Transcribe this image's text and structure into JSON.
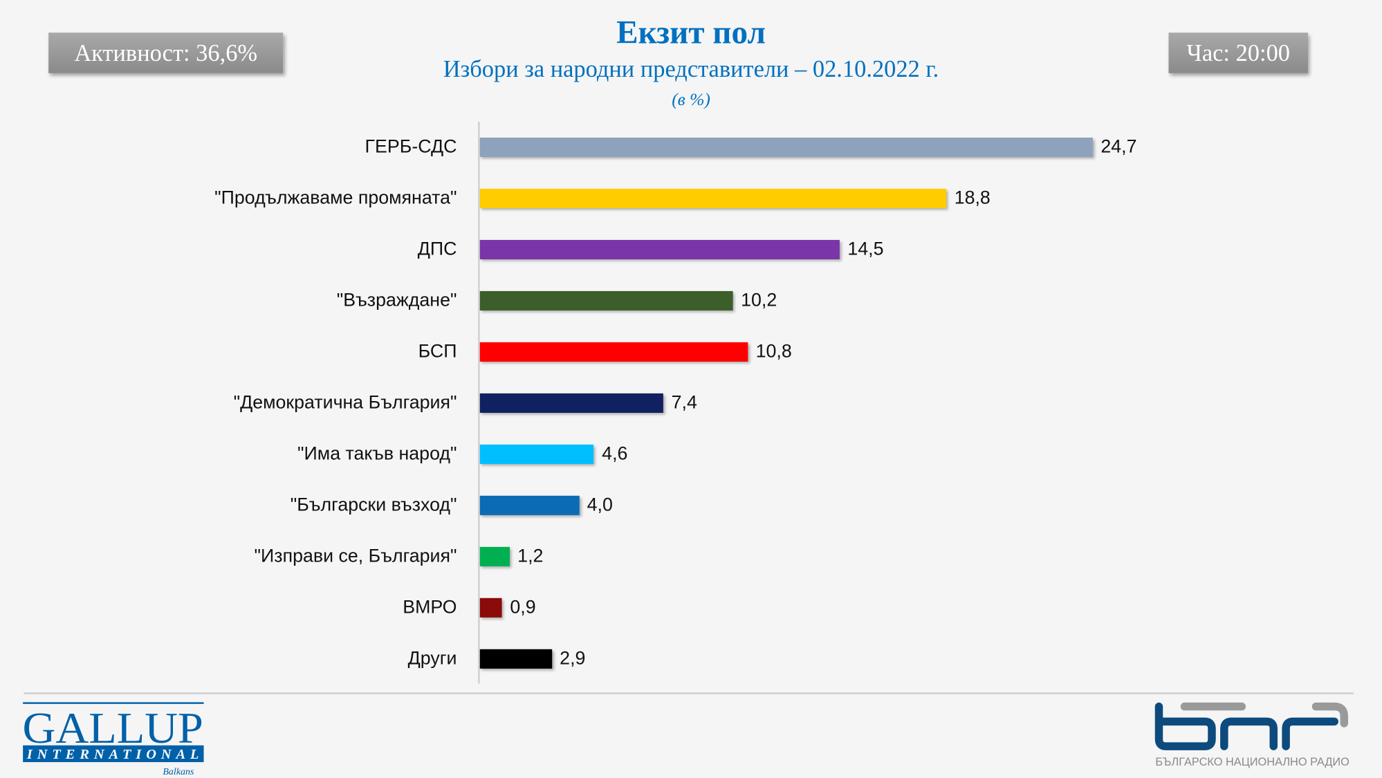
{
  "header": {
    "turnout": "Активност: 36,6%",
    "time": "Час: 20:00",
    "title": "Екзит пол",
    "subtitle": "Избори за народни представители – 02.10.2022 г.",
    "unit": "(в %)"
  },
  "chart_data": {
    "type": "bar",
    "orientation": "horizontal",
    "title": "Екзит пол",
    "subtitle": "Избори за народни представители – 02.10.2022 г.",
    "unit": "(в %)",
    "categories": [
      "ГЕРБ-СДС",
      "\"Продължаваме промяната\"",
      "ДПС",
      "\"Възраждане\"",
      "БСП",
      "\"Демократична България\"",
      "\"Има такъв народ\"",
      "\"Български възход\"",
      "\"Изправи се, България\"",
      "ВМРО",
      "Други"
    ],
    "values": [
      24.7,
      18.8,
      14.5,
      10.2,
      10.8,
      7.4,
      4.6,
      4.0,
      1.2,
      0.9,
      2.9
    ],
    "value_labels": [
      "24,7",
      "18,8",
      "14,5",
      "10,2",
      "10,8",
      "7,4",
      "4,6",
      "4,0",
      "1,2",
      "0,9",
      "2,9"
    ],
    "colors": [
      "#8ea2bd",
      "#ffcc00",
      "#7a35a8",
      "#3c5e2a",
      "#ff0000",
      "#0f2160",
      "#00bfff",
      "#0b6cb5",
      "#00b050",
      "#8b0a0a",
      "#000000"
    ],
    "grid": false
  },
  "footer": {
    "gallup_logo": {
      "line1": "GALLUP",
      "line2": "INTERNATIONAL",
      "line3": "Balkans",
      "color": "#0060a8"
    },
    "bnr_logo": {
      "text": "БЪЛГАРСКО НАЦИОНАЛНО РАДИО",
      "color": "#0d4a7e"
    }
  }
}
